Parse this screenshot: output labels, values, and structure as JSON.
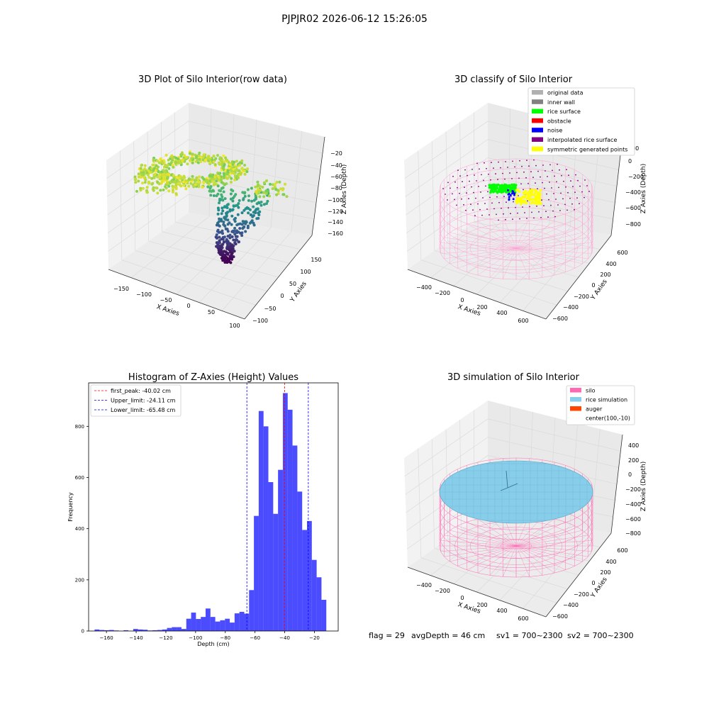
{
  "figure": {
    "suptitle": "PJPJR02 2026-06-12 15:26:05",
    "footer": {
      "flag": "flag = 29",
      "avg_depth": "avgDepth = 46 cm",
      "sv1": "sv1 = 700~2300",
      "sv2": "sv2 = 700~2300"
    }
  },
  "chart_data": [
    {
      "type": "scatter",
      "title": "3D Plot of Silo Interior(row data)",
      "xlabel": "X Axies",
      "ylabel": "Y Axies",
      "zlabel": "Z Axies (Depth)",
      "x_ticks": [
        "−150",
        "−100",
        "−50",
        "0",
        "50",
        "100"
      ],
      "y_ticks": [
        "−100",
        "−50",
        "0",
        "50",
        "100",
        "150"
      ],
      "z_ticks": [
        "−20",
        "−40",
        "−60",
        "−80",
        "−100",
        "−120",
        "−140",
        "−160"
      ],
      "colormap": "viridis"
    },
    {
      "type": "scatter",
      "title": "3D classify of Silo Interior",
      "xlabel": "X Axies",
      "ylabel": "Y Axies",
      "zlabel": "Z Axies (Depth)",
      "x_ticks": [
        "−400",
        "−200",
        "0",
        "200",
        "400",
        "600"
      ],
      "y_ticks": [
        "−600",
        "−400",
        "−200",
        "0",
        "200",
        "400",
        "600"
      ],
      "z_ticks": [
        "200",
        "0",
        "−200",
        "−400",
        "−600",
        "−800"
      ],
      "legend_position": "top-right",
      "legend": [
        {
          "label": "original data",
          "color": "#b0b0b0"
        },
        {
          "label": "inner wall",
          "color": "#808080"
        },
        {
          "label": "rice surface",
          "color": "#00ff00"
        },
        {
          "label": "obstacle",
          "color": "#ff0000"
        },
        {
          "label": "noise",
          "color": "#0000ff"
        },
        {
          "label": "interpolated rice surface",
          "color": "#800080"
        },
        {
          "label": "symmetric generated points",
          "color": "#ffff00"
        }
      ]
    },
    {
      "type": "bar",
      "title": "Histogram of Z-Axies (Height) Values",
      "xlabel": "Depth (cm)",
      "ylabel": "Frequency",
      "xlim": [
        -172,
        -4
      ],
      "ylim": [
        0,
        970
      ],
      "x_ticks": [
        -160,
        -140,
        -120,
        -100,
        -80,
        -60,
        -40,
        -20
      ],
      "y_ticks": [
        0,
        200,
        400,
        600,
        800
      ],
      "bin_start": -168,
      "bin_width": 3.25,
      "bar_color": "#0000ff",
      "values": [
        6,
        4,
        3,
        4,
        2,
        0,
        3,
        0,
        8,
        6,
        5,
        2,
        3,
        4,
        6,
        12,
        15,
        15,
        8,
        48,
        72,
        47,
        55,
        88,
        55,
        37,
        42,
        48,
        33,
        69,
        75,
        68,
        160,
        450,
        860,
        800,
        582,
        458,
        630,
        930,
        865,
        725,
        545,
        395,
        430,
        278,
        210,
        122
      ],
      "legend_position": "top-left",
      "lines": [
        {
          "label": "first_peak: -40.02 cm",
          "x": -40.02,
          "color": "#ff0000"
        },
        {
          "label": "Upper_limit: -24.11 cm",
          "x": -24.11,
          "color": "#0000ff"
        },
        {
          "label": "Lower_limit: -65.48 cm",
          "x": -65.48,
          "color": "#0000ff"
        }
      ]
    },
    {
      "type": "scatter",
      "title": "3D simulation of Silo Interior",
      "xlabel": "X Axies",
      "ylabel": "Y Axies",
      "zlabel": "Z Axies (Depth)",
      "x_ticks": [
        "−400",
        "−200",
        "0",
        "200",
        "400",
        "600"
      ],
      "y_ticks": [
        "−600",
        "−400",
        "−200",
        "0",
        "200",
        "400",
        "600"
      ],
      "z_ticks": [
        "400",
        "200",
        "0",
        "−200",
        "−400",
        "−600",
        "−800"
      ],
      "legend_position": "top-right",
      "legend": [
        {
          "label": "silo",
          "color": "#ff69b4"
        },
        {
          "label": "rice simulation",
          "color": "#87ceeb"
        },
        {
          "label": "auger",
          "color": "#ff4500"
        },
        {
          "label": "center(100,-10)",
          "color": "none"
        }
      ]
    }
  ]
}
